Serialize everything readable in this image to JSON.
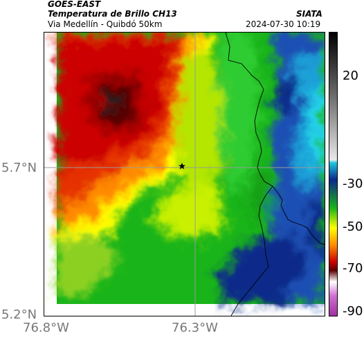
{
  "header": {
    "satellite": "GOES-EAST",
    "product": "Temperatura de Brillo CH13",
    "route": "Via Medellín - Quibdó 50km",
    "source": "SIATA",
    "timestamp": "2024-07-30 10:19"
  },
  "map": {
    "lat_labels": [
      "5.7°N",
      "5.2°N"
    ],
    "lon_labels": [
      "76.8°W",
      "76.3°W"
    ],
    "marker_icon": "star-icon"
  },
  "colorbar": {
    "tick_labels": [
      "20",
      "-30",
      "-50",
      "-70",
      "-90"
    ],
    "colors": [
      "#000000",
      "#8a8a8a",
      "#ffffff",
      "#1fc4e0",
      "#0a2a8a",
      "#19b419",
      "#ffff00",
      "#ff8c00",
      "#cc0000",
      "#5a0000",
      "#ffffff",
      "#c050c0"
    ]
  }
}
